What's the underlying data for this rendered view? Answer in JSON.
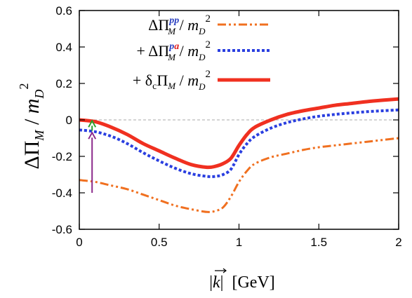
{
  "chart_data": {
    "type": "line",
    "title": "",
    "xlabel": {
      "abs_open": "|",
      "vec": "k",
      "abs_close": "|",
      "unit": "[GeV]"
    },
    "ylabel": {
      "delta": "ΔΠ",
      "sub": "M",
      "slash": " / ",
      "m": "m",
      "msub": "D",
      "msup": "2"
    },
    "xlim": [
      0,
      2
    ],
    "ylim": [
      -0.6,
      0.6
    ],
    "xticks": [
      "0",
      "0.5",
      "1",
      "1.5",
      "2"
    ],
    "yticks": [
      "0.6",
      "0.4",
      "0.2",
      "0",
      "-0.2",
      "-0.4",
      "-0.6"
    ],
    "zero_line": true,
    "legend_position": "top-right",
    "series": [
      {
        "prefix": "",
        "sym": "ΔΠ",
        "sub": "M",
        "sup_a": "p",
        "sup_b": "p",
        "tail_m": "m",
        "tail_sub": "D",
        "tail_sup": "2",
        "color": "#f07020",
        "dash": "dashdotdot",
        "x": [
          0,
          0.1,
          0.2,
          0.3,
          0.4,
          0.5,
          0.6,
          0.7,
          0.8,
          0.85,
          0.9,
          0.95,
          1.0,
          1.05,
          1.1,
          1.2,
          1.3,
          1.4,
          1.5,
          1.6,
          1.7,
          1.8,
          1.9,
          2.0
        ],
        "y": [
          -0.33,
          -0.34,
          -0.36,
          -0.38,
          -0.41,
          -0.44,
          -0.47,
          -0.49,
          -0.505,
          -0.5,
          -0.48,
          -0.42,
          -0.34,
          -0.28,
          -0.24,
          -0.205,
          -0.185,
          -0.165,
          -0.15,
          -0.14,
          -0.13,
          -0.12,
          -0.11,
          -0.1
        ]
      },
      {
        "prefix": "+ ",
        "sym": "ΔΠ",
        "sub": "M",
        "sup_a": "p",
        "sup_b": "a",
        "tail_m": "m",
        "tail_sub": "D",
        "tail_sup": "2",
        "color": "#2a3fe0",
        "dash": "dotted",
        "x": [
          0,
          0.1,
          0.2,
          0.3,
          0.4,
          0.5,
          0.6,
          0.7,
          0.8,
          0.85,
          0.9,
          0.95,
          1.0,
          1.05,
          1.1,
          1.2,
          1.3,
          1.4,
          1.5,
          1.6,
          1.7,
          1.8,
          1.9,
          2.0
        ],
        "y": [
          -0.055,
          -0.065,
          -0.09,
          -0.13,
          -0.18,
          -0.225,
          -0.265,
          -0.295,
          -0.31,
          -0.31,
          -0.3,
          -0.27,
          -0.19,
          -0.13,
          -0.09,
          -0.045,
          -0.015,
          0.005,
          0.02,
          0.03,
          0.038,
          0.045,
          0.05,
          0.055
        ]
      },
      {
        "prefix": "+ ",
        "sym": "δ",
        "sym_c": "c",
        "sym2": "Π",
        "sub": "M",
        "sup_a": "",
        "sup_b": "",
        "tail_m": "m",
        "tail_sub": "D",
        "tail_sup": "2",
        "color": "#f03020",
        "dash": "solid",
        "x": [
          0,
          0.1,
          0.2,
          0.3,
          0.4,
          0.5,
          0.6,
          0.7,
          0.8,
          0.85,
          0.9,
          0.95,
          1.0,
          1.05,
          1.1,
          1.2,
          1.3,
          1.4,
          1.5,
          1.6,
          1.7,
          1.8,
          1.9,
          2.0
        ],
        "y": [
          0.0,
          -0.01,
          -0.04,
          -0.08,
          -0.13,
          -0.17,
          -0.21,
          -0.245,
          -0.26,
          -0.255,
          -0.24,
          -0.21,
          -0.14,
          -0.08,
          -0.04,
          0.0,
          0.03,
          0.05,
          0.065,
          0.08,
          0.09,
          0.1,
          0.108,
          0.115
        ]
      }
    ],
    "annotations": [
      {
        "kind": "arrow",
        "color": "#8b2a8b",
        "x": 0.08,
        "y_from": -0.4,
        "y_to": -0.07
      },
      {
        "kind": "arrow",
        "color": "#2aa02a",
        "x": 0.08,
        "y_from": -0.06,
        "y_to": -0.005
      }
    ]
  }
}
